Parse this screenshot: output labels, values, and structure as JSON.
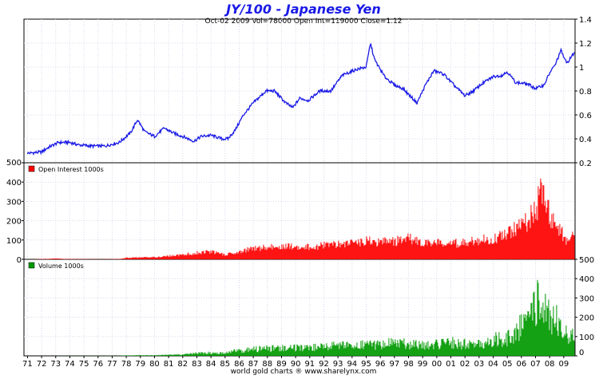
{
  "chart_data": [
    {
      "type": "line",
      "title": "JY/100  -  Japanese Yen",
      "subtitle": "Oct-02 2009  Vol=78000   Open Int=119000   Close=1.12",
      "ylim": [
        0.2,
        1.4
      ],
      "yticks": [
        "1.4",
        "1.2",
        "1",
        "0.8",
        "0.6",
        "0.4",
        "0.2"
      ],
      "y_axis_side": "right",
      "grid": true,
      "series": [
        {
          "color": "#1a1ae6",
          "points": [
            [
              1971.0,
              0.28
            ],
            [
              1972.0,
              0.29
            ],
            [
              1972.5,
              0.33
            ],
            [
              1973.2,
              0.37
            ],
            [
              1974.0,
              0.37
            ],
            [
              1974.6,
              0.35
            ],
            [
              1975.5,
              0.34
            ],
            [
              1976.5,
              0.34
            ],
            [
              1977.5,
              0.37
            ],
            [
              1978.3,
              0.45
            ],
            [
              1978.8,
              0.56
            ],
            [
              1979.3,
              0.46
            ],
            [
              1980.0,
              0.42
            ],
            [
              1980.7,
              0.49
            ],
            [
              1981.3,
              0.45
            ],
            [
              1982.0,
              0.42
            ],
            [
              1982.8,
              0.38
            ],
            [
              1983.3,
              0.42
            ],
            [
              1984.0,
              0.43
            ],
            [
              1984.8,
              0.4
            ],
            [
              1985.2,
              0.4
            ],
            [
              1985.7,
              0.47
            ],
            [
              1986.3,
              0.6
            ],
            [
              1987.0,
              0.7
            ],
            [
              1987.9,
              0.8
            ],
            [
              1988.5,
              0.8
            ],
            [
              1989.3,
              0.7
            ],
            [
              1989.8,
              0.66
            ],
            [
              1990.3,
              0.74
            ],
            [
              1990.9,
              0.72
            ],
            [
              1991.7,
              0.8
            ],
            [
              1992.5,
              0.8
            ],
            [
              1993.3,
              0.93
            ],
            [
              1994.3,
              0.98
            ],
            [
              1995.0,
              1.0
            ],
            [
              1995.3,
              1.2
            ],
            [
              1995.6,
              1.06
            ],
            [
              1996.3,
              0.92
            ],
            [
              1997.0,
              0.85
            ],
            [
              1997.6,
              0.82
            ],
            [
              1998.6,
              0.7
            ],
            [
              1999.2,
              0.85
            ],
            [
              1999.8,
              0.97
            ],
            [
              2000.5,
              0.94
            ],
            [
              2001.2,
              0.85
            ],
            [
              2002.0,
              0.76
            ],
            [
              2002.6,
              0.8
            ],
            [
              2003.2,
              0.86
            ],
            [
              2004.0,
              0.92
            ],
            [
              2004.6,
              0.93
            ],
            [
              2005.0,
              0.96
            ],
            [
              2005.6,
              0.87
            ],
            [
              2006.4,
              0.86
            ],
            [
              2007.0,
              0.82
            ],
            [
              2007.6,
              0.85
            ],
            [
              2008.0,
              0.95
            ],
            [
              2008.4,
              1.02
            ],
            [
              2008.8,
              1.14
            ],
            [
              2009.2,
              1.03
            ],
            [
              2009.75,
              1.12
            ]
          ]
        }
      ]
    },
    {
      "type": "bar",
      "legend": "Open Interest 1000s",
      "legend_position": "top-left",
      "ylim": [
        0,
        500
      ],
      "yticks": [
        "500",
        "400",
        "300",
        "200",
        "100",
        "0"
      ],
      "y_axis_side": "left",
      "grid": true,
      "color": "#ff0000",
      "envelope": [
        [
          1971.0,
          0
        ],
        [
          1972.0,
          2
        ],
        [
          1973.0,
          5
        ],
        [
          1974.0,
          2
        ],
        [
          1976.0,
          1
        ],
        [
          1977.5,
          2
        ],
        [
          1978.0,
          10
        ],
        [
          1980.0,
          15
        ],
        [
          1982.0,
          30
        ],
        [
          1983.0,
          45
        ],
        [
          1984.0,
          50
        ],
        [
          1985.0,
          30
        ],
        [
          1986.0,
          55
        ],
        [
          1987.0,
          70
        ],
        [
          1988.0,
          80
        ],
        [
          1989.0,
          85
        ],
        [
          1990.0,
          90
        ],
        [
          1991.0,
          80
        ],
        [
          1992.0,
          95
        ],
        [
          1993.0,
          100
        ],
        [
          1994.0,
          110
        ],
        [
          1995.0,
          120
        ],
        [
          1996.0,
          115
        ],
        [
          1997.0,
          120
        ],
        [
          1998.0,
          140
        ],
        [
          1999.0,
          100
        ],
        [
          2000.0,
          115
        ],
        [
          2001.0,
          105
        ],
        [
          2002.0,
          110
        ],
        [
          2003.0,
          130
        ],
        [
          2004.0,
          140
        ],
        [
          2005.0,
          170
        ],
        [
          2006.0,
          220
        ],
        [
          2007.0,
          320
        ],
        [
          2007.3,
          440
        ],
        [
          2007.8,
          330
        ],
        [
          2008.3,
          240
        ],
        [
          2008.7,
          200
        ],
        [
          2009.3,
          100
        ],
        [
          2009.75,
          170
        ]
      ]
    },
    {
      "type": "bar",
      "legend": "Volume 1000s",
      "legend_position": "top-left",
      "ylim": [
        0,
        500
      ],
      "yticks": [
        "500",
        "400",
        "300",
        "200",
        "100",
        "0"
      ],
      "y_axis_side": "right",
      "grid": true,
      "color": "#009900",
      "envelope": [
        [
          1971.0,
          0
        ],
        [
          1977.5,
          1
        ],
        [
          1978.0,
          3
        ],
        [
          1980.0,
          5
        ],
        [
          1982.0,
          10
        ],
        [
          1983.0,
          20
        ],
        [
          1985.0,
          25
        ],
        [
          1986.0,
          40
        ],
        [
          1987.0,
          50
        ],
        [
          1988.0,
          55
        ],
        [
          1990.0,
          60
        ],
        [
          1992.0,
          65
        ],
        [
          1993.0,
          80
        ],
        [
          1994.0,
          70
        ],
        [
          1995.0,
          90
        ],
        [
          1996.0,
          85
        ],
        [
          1997.0,
          100
        ],
        [
          1998.0,
          90
        ],
        [
          1999.0,
          80
        ],
        [
          2000.0,
          90
        ],
        [
          2001.0,
          100
        ],
        [
          2002.0,
          90
        ],
        [
          2003.0,
          100
        ],
        [
          2004.0,
          120
        ],
        [
          2005.0,
          140
        ],
        [
          2005.5,
          170
        ],
        [
          2006.0,
          240
        ],
        [
          2006.5,
          320
        ],
        [
          2007.0,
          380
        ],
        [
          2007.3,
          420
        ],
        [
          2007.8,
          330
        ],
        [
          2008.3,
          300
        ],
        [
          2008.8,
          220
        ],
        [
          2009.3,
          170
        ],
        [
          2009.75,
          200
        ]
      ]
    }
  ],
  "x_axis": {
    "labels": [
      "71",
      "72",
      "73",
      "74",
      "75",
      "76",
      "77",
      "78",
      "79",
      "80",
      "81",
      "82",
      "83",
      "84",
      "85",
      "86",
      "87",
      "88",
      "89",
      "90",
      "91",
      "92",
      "93",
      "94",
      "95",
      "96",
      "97",
      "98",
      "99",
      "00",
      "01",
      "02",
      "03",
      "04",
      "05",
      "06",
      "07",
      "08",
      "09"
    ],
    "range": [
      1970.75,
      2009.8
    ]
  },
  "footer": "world gold charts ® www.sharelynx.com"
}
